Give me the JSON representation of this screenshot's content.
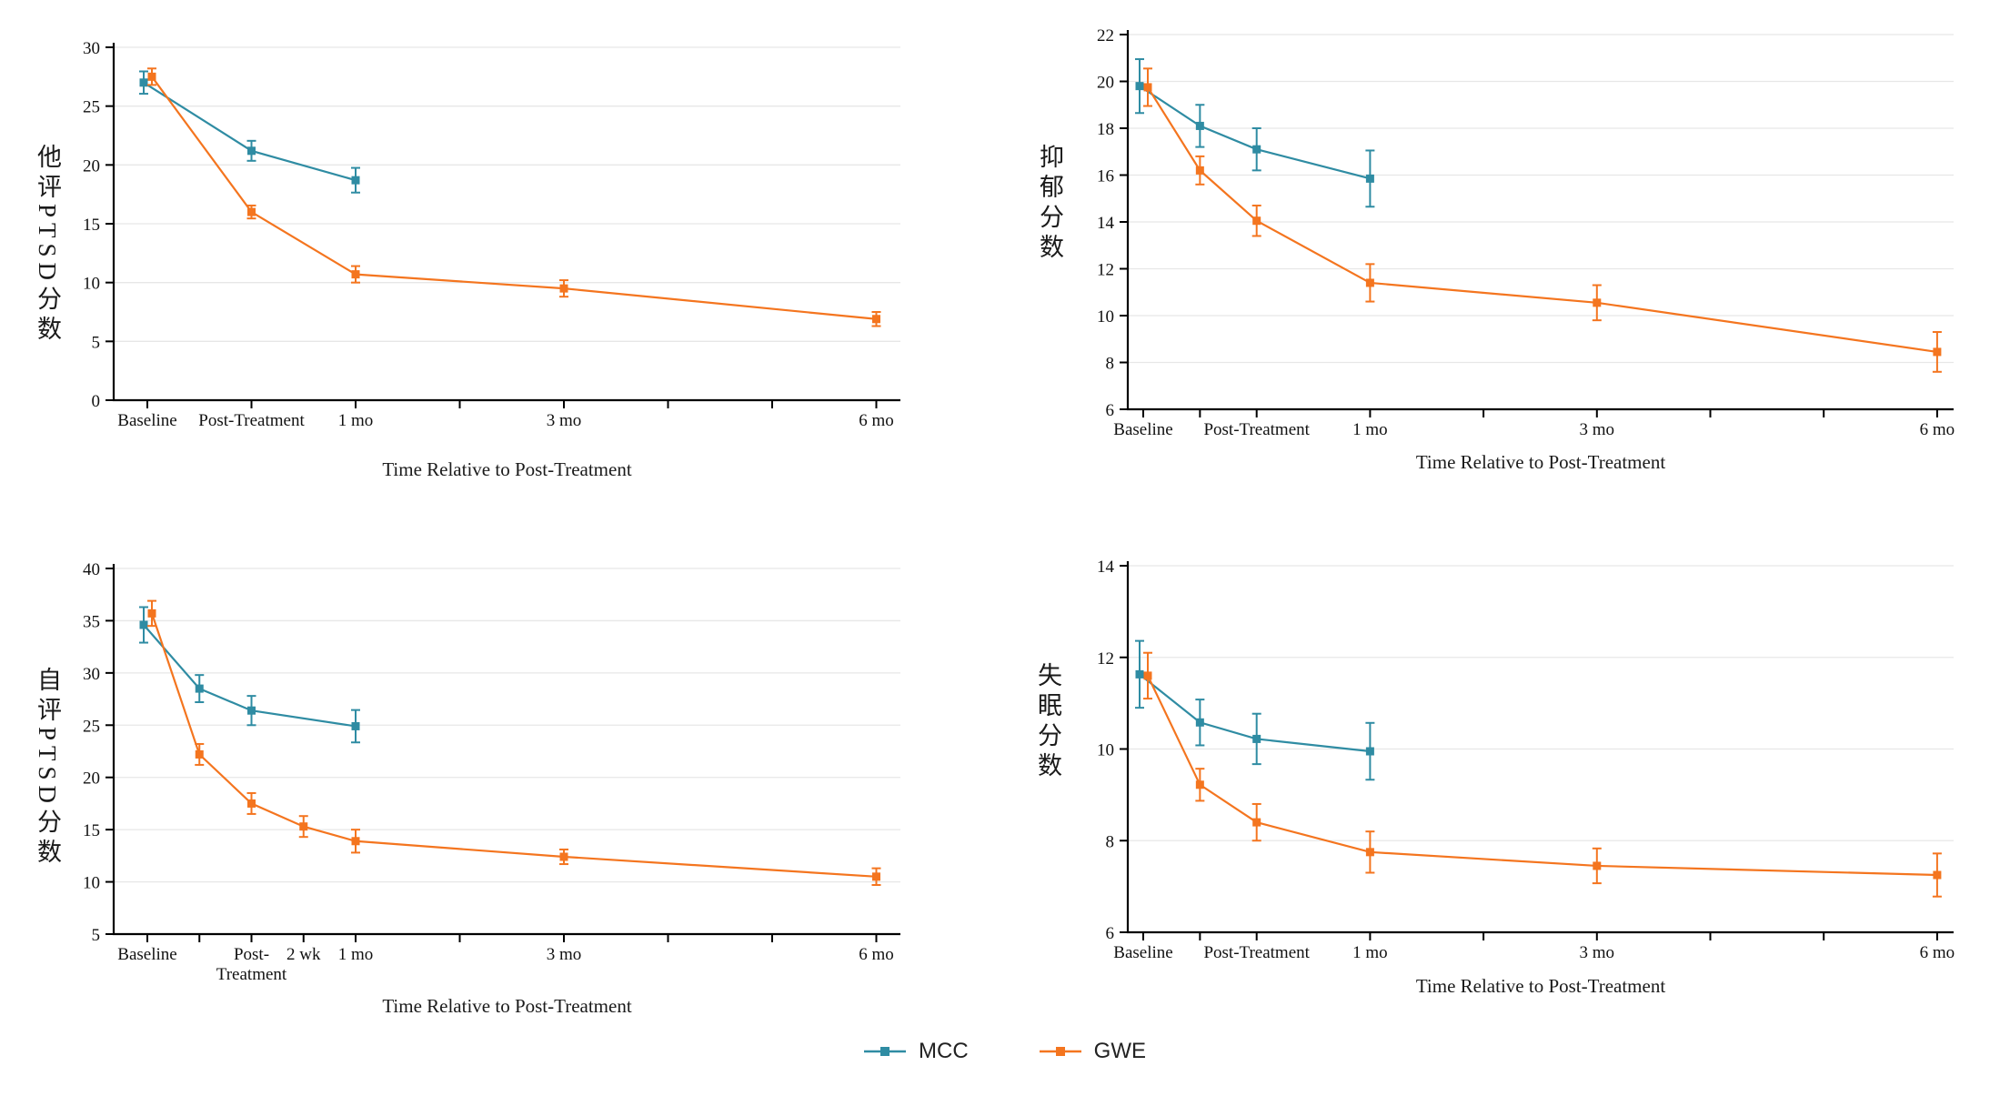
{
  "figure": {
    "background": "#ffffff"
  },
  "legend": {
    "position": "bottom-center",
    "series": [
      {
        "name": "MCC",
        "color": "#2F8CA3"
      },
      {
        "name": "GWE",
        "color": "#F4751F"
      }
    ]
  },
  "chart_data": [
    {
      "id": "clinician_ptsd",
      "type": "line",
      "ylabel": "他评PTSD分数",
      "xlabel": "Time Relative to Post-Treatment",
      "ylim": [
        0,
        30
      ],
      "yticks": [
        0,
        5,
        10,
        15,
        20,
        25,
        30
      ],
      "grid": true,
      "marker": "square",
      "error_bars": true,
      "xticks": [
        {
          "u": 0,
          "label": "Baseline"
        },
        {
          "u": 1,
          "label": "Post-Treatment"
        },
        {
          "u": 2,
          "label": "1 mo"
        },
        {
          "u": 3,
          "label": ""
        },
        {
          "u": 4,
          "label": "3 mo"
        },
        {
          "u": 5,
          "label": ""
        },
        {
          "u": 6,
          "label": ""
        },
        {
          "u": 7,
          "label": "6 mo"
        }
      ],
      "series": [
        {
          "name": "MCC",
          "color": "#2F8CA3",
          "points": [
            {
              "u": 0,
              "y": 27.0,
              "e": 0.95
            },
            {
              "u": 1,
              "y": 21.2,
              "e": 0.85
            },
            {
              "u": 2,
              "y": 18.7,
              "e": 1.05
            }
          ]
        },
        {
          "name": "GWE",
          "color": "#F4751F",
          "points": [
            {
              "u": 0,
              "y": 27.5,
              "e": 0.7
            },
            {
              "u": 1,
              "y": 16.0,
              "e": 0.55
            },
            {
              "u": 2,
              "y": 10.7,
              "e": 0.7
            },
            {
              "u": 4,
              "y": 9.5,
              "e": 0.7
            },
            {
              "u": 7,
              "y": 6.9,
              "e": 0.6
            }
          ]
        }
      ]
    },
    {
      "id": "depression",
      "type": "line",
      "ylabel": "抑郁分数",
      "xlabel": "Time Relative to Post-Treatment",
      "ylim": [
        6,
        22
      ],
      "yticks": [
        6,
        8,
        10,
        12,
        14,
        16,
        18,
        20,
        22
      ],
      "grid": true,
      "marker": "square",
      "error_bars": true,
      "xticks": [
        {
          "u": 0,
          "label": "Baseline"
        },
        {
          "u": 0.5,
          "label": ""
        },
        {
          "u": 1,
          "label": "Post-Treatment"
        },
        {
          "u": 2,
          "label": "1 mo"
        },
        {
          "u": 3,
          "label": ""
        },
        {
          "u": 4,
          "label": "3 mo"
        },
        {
          "u": 5,
          "label": ""
        },
        {
          "u": 6,
          "label": ""
        },
        {
          "u": 7,
          "label": "6 mo"
        }
      ],
      "series": [
        {
          "name": "MCC",
          "color": "#2F8CA3",
          "points": [
            {
              "u": 0,
              "y": 19.8,
              "e": 1.15
            },
            {
              "u": 0.5,
              "y": 18.1,
              "e": 0.9
            },
            {
              "u": 1,
              "y": 17.1,
              "e": 0.9
            },
            {
              "u": 2,
              "y": 15.85,
              "e": 1.2
            }
          ]
        },
        {
          "name": "GWE",
          "color": "#F4751F",
          "points": [
            {
              "u": 0,
              "y": 19.75,
              "e": 0.8
            },
            {
              "u": 0.5,
              "y": 16.2,
              "e": 0.6
            },
            {
              "u": 1,
              "y": 14.05,
              "e": 0.65
            },
            {
              "u": 2,
              "y": 11.4,
              "e": 0.8
            },
            {
              "u": 4,
              "y": 10.55,
              "e": 0.75
            },
            {
              "u": 7,
              "y": 8.45,
              "e": 0.85
            }
          ]
        }
      ]
    },
    {
      "id": "self_ptsd",
      "type": "line",
      "ylabel": "自评PTSD分数",
      "xlabel": "Time Relative to Post-Treatment",
      "ylim": [
        5,
        40
      ],
      "yticks": [
        5,
        10,
        15,
        20,
        25,
        30,
        35,
        40
      ],
      "grid": true,
      "marker": "square",
      "error_bars": true,
      "xticks": [
        {
          "u": 0,
          "label": "Baseline"
        },
        {
          "u": 0.5,
          "label": ""
        },
        {
          "u": 1,
          "label": "Post-Treatment",
          "wrap": true
        },
        {
          "u": 1.5,
          "label": "2 wk"
        },
        {
          "u": 2,
          "label": "1 mo"
        },
        {
          "u": 3,
          "label": ""
        },
        {
          "u": 4,
          "label": "3 mo"
        },
        {
          "u": 5,
          "label": ""
        },
        {
          "u": 6,
          "label": ""
        },
        {
          "u": 7,
          "label": "6 mo"
        }
      ],
      "series": [
        {
          "name": "MCC",
          "color": "#2F8CA3",
          "points": [
            {
              "u": 0,
              "y": 34.6,
              "e": 1.7
            },
            {
              "u": 0.5,
              "y": 28.5,
              "e": 1.3
            },
            {
              "u": 1,
              "y": 26.4,
              "e": 1.4
            },
            {
              "u": 2,
              "y": 24.9,
              "e": 1.55
            }
          ]
        },
        {
          "name": "GWE",
          "color": "#F4751F",
          "points": [
            {
              "u": 0,
              "y": 35.7,
              "e": 1.2
            },
            {
              "u": 0.5,
              "y": 22.2,
              "e": 1.0
            },
            {
              "u": 1,
              "y": 17.5,
              "e": 1.0
            },
            {
              "u": 1.5,
              "y": 15.3,
              "e": 1.0
            },
            {
              "u": 2,
              "y": 13.9,
              "e": 1.1
            },
            {
              "u": 4,
              "y": 12.4,
              "e": 0.7
            },
            {
              "u": 7,
              "y": 10.5,
              "e": 0.8
            }
          ]
        }
      ]
    },
    {
      "id": "insomnia",
      "type": "line",
      "ylabel": "失眠分数",
      "xlabel": "Time Relative to Post-Treatment",
      "ylim": [
        6,
        14
      ],
      "yticks": [
        6,
        8,
        10,
        12,
        14
      ],
      "grid": true,
      "marker": "square",
      "error_bars": true,
      "xticks": [
        {
          "u": 0,
          "label": "Baseline"
        },
        {
          "u": 0.5,
          "label": ""
        },
        {
          "u": 1,
          "label": "Post-Treatment"
        },
        {
          "u": 2,
          "label": "1 mo"
        },
        {
          "u": 3,
          "label": ""
        },
        {
          "u": 4,
          "label": "3 mo"
        },
        {
          "u": 5,
          "label": ""
        },
        {
          "u": 6,
          "label": ""
        },
        {
          "u": 7,
          "label": "6 mo"
        }
      ],
      "series": [
        {
          "name": "MCC",
          "color": "#2F8CA3",
          "points": [
            {
              "u": 0,
              "y": 11.63,
              "e": 0.73
            },
            {
              "u": 0.5,
              "y": 10.58,
              "e": 0.5
            },
            {
              "u": 1,
              "y": 10.22,
              "e": 0.55
            },
            {
              "u": 2,
              "y": 9.95,
              "e": 0.62
            }
          ]
        },
        {
          "name": "GWE",
          "color": "#F4751F",
          "points": [
            {
              "u": 0,
              "y": 11.6,
              "e": 0.5
            },
            {
              "u": 0.5,
              "y": 9.22,
              "e": 0.35
            },
            {
              "u": 1,
              "y": 8.4,
              "e": 0.4
            },
            {
              "u": 2,
              "y": 7.75,
              "e": 0.45
            },
            {
              "u": 4,
              "y": 7.45,
              "e": 0.38
            },
            {
              "u": 7,
              "y": 7.25,
              "e": 0.47
            }
          ]
        }
      ]
    }
  ]
}
